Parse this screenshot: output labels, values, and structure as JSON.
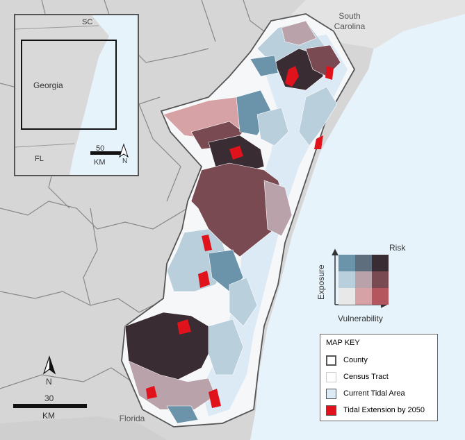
{
  "labels": {
    "south_carolina": "South\nCarolina",
    "florida": "Florida"
  },
  "inset": {
    "sc": "SC",
    "georgia": "Georgia",
    "fl": "FL",
    "scale_value": "50",
    "scale_unit": "KM",
    "north": "N"
  },
  "main_scale": {
    "value": "30",
    "unit": "KM",
    "north": "N"
  },
  "bivariate": {
    "risk": "Risk",
    "exposure": "Exposure",
    "vulnerability": "Vulnerability",
    "colors": [
      "#6b94ab",
      "#5e6e7c",
      "#3a2c33",
      "#b9cfdc",
      "#b9a2aa",
      "#7a4a52",
      "#e8e8e8",
      "#d7a2a6",
      "#b5555e"
    ]
  },
  "map_key": {
    "title": "MAP KEY",
    "items": [
      {
        "label": "County",
        "icon": "county-outline"
      },
      {
        "label": "Census Tract",
        "icon": "tract-outline"
      },
      {
        "label": "Current Tidal Area",
        "icon": "tidal-area"
      },
      {
        "label": "Tidal Extension by 2050",
        "icon": "tidal-extension"
      }
    ]
  },
  "colors": {
    "ocean": "#e6f3fb",
    "land": "#d6d6d6",
    "tidal": "#dbeaf5",
    "extension": "#e0121c",
    "dark_risk": "#3a2c33",
    "high_vuln": "#7a4a52",
    "high_exposure": "#6b94ab"
  }
}
